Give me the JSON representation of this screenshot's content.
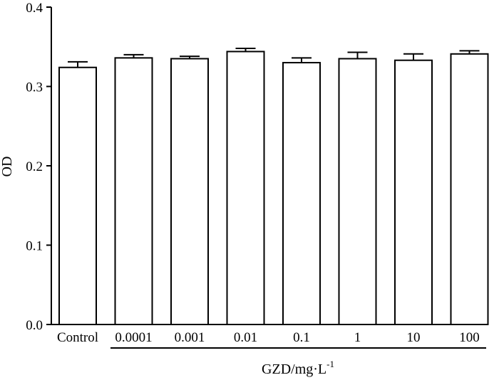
{
  "chart_data": {
    "type": "bar",
    "categories": [
      "Control",
      "0.0001",
      "0.001",
      "0.01",
      "0.1",
      "1",
      "10",
      "100"
    ],
    "values": [
      0.324,
      0.336,
      0.335,
      0.344,
      0.33,
      0.335,
      0.333,
      0.341
    ],
    "errors": [
      0.007,
      0.004,
      0.003,
      0.004,
      0.006,
      0.008,
      0.008,
      0.004
    ],
    "ylabel": "OD",
    "xlabel_text": "GZD/mg·L",
    "xlabel_sup": "-1",
    "ylim": [
      0.0,
      0.4
    ],
    "yticks": [
      "0.0",
      "0.1",
      "0.2",
      "0.3",
      "0.4"
    ],
    "grid": false,
    "bar_fill": "#ffffff",
    "bar_edge": "#000000"
  }
}
